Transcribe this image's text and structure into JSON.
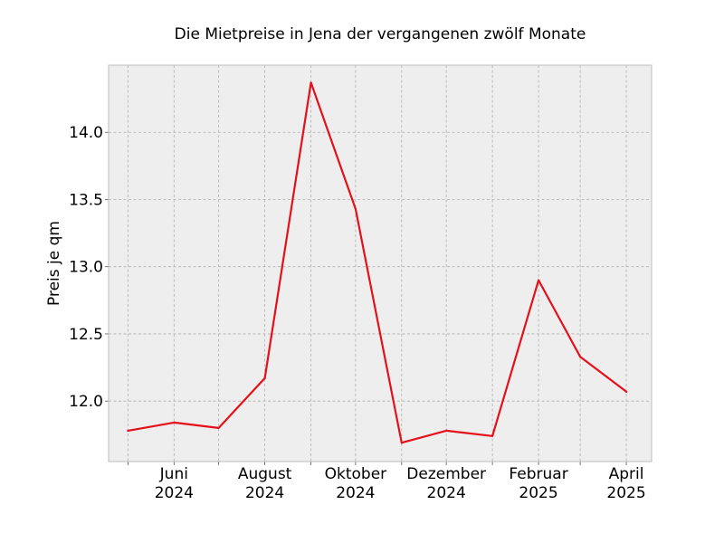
{
  "chart_data": {
    "type": "line",
    "title": "Die Mietpreise in Jena der vergangenen zwölf Monate",
    "xlabel": "",
    "ylabel": "Preis je qm",
    "x": [
      "2024-05",
      "2024-06",
      "2024-07",
      "2024-08",
      "2024-09",
      "2024-10",
      "2024-11",
      "2024-12",
      "2025-01",
      "2025-02",
      "2025-03",
      "2025-04"
    ],
    "series": [
      {
        "values": [
          11.78,
          11.84,
          11.8,
          12.17,
          14.37,
          13.43,
          11.69,
          11.78,
          11.74,
          12.9,
          12.33,
          12.07
        ]
      }
    ],
    "xlim": [
      "2024-04-18",
      "2025-04-18"
    ],
    "ylim": [
      11.55,
      14.5
    ],
    "y_ticks": [
      "12.0",
      "12.5",
      "13.0",
      "13.5",
      "14.0"
    ],
    "x_ticks": [
      {
        "date": "2024-06",
        "line1": "Juni",
        "line2": "2024"
      },
      {
        "date": "2024-08",
        "line1": "August",
        "line2": "2024"
      },
      {
        "date": "2024-10",
        "line1": "Oktober",
        "line2": "2024"
      },
      {
        "date": "2024-12",
        "line1": "Dezember",
        "line2": "2024"
      },
      {
        "date": "2025-02",
        "line1": "Februar",
        "line2": "2025"
      },
      {
        "date": "2025-04",
        "line1": "April",
        "line2": "2025"
      }
    ],
    "minor_x_ticks": [
      "2024-05",
      "2024-07",
      "2024-09",
      "2024-11",
      "2025-01",
      "2025-03"
    ],
    "grid": true,
    "colors": {
      "line": "#e3111b",
      "plot_background": "#eeeeee",
      "grid": "#b0b0b0",
      "frame": "#bcbcbc"
    }
  }
}
